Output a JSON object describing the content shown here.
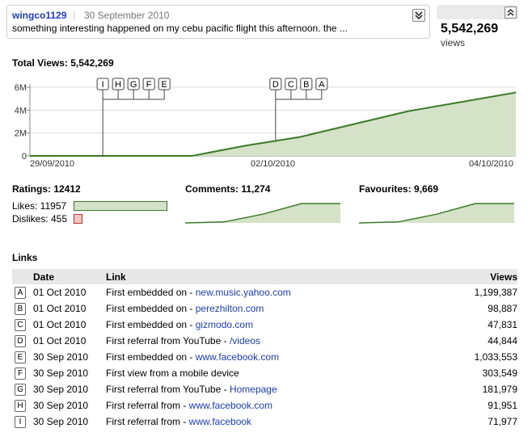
{
  "header": {
    "username": "wingco1129",
    "separator": "|",
    "date": "30 September 2010",
    "description": "something interesting happened on my cebu pacific flight this afternoon. the ...",
    "views_count": "5,542,269",
    "views_label": "views"
  },
  "total": {
    "label": "Total Views: 5,542,269"
  },
  "chart_data": {
    "type": "area",
    "title": "Total Views: 5,542,269",
    "x_tick_labels": [
      "29/09/2010",
      "02/10/2010",
      "04/10/2010"
    ],
    "y_tick_labels": [
      "0",
      "2M",
      "4M",
      "6M"
    ],
    "ylim": [
      0,
      6000000
    ],
    "x": [
      0,
      3,
      4,
      5,
      7,
      9
    ],
    "values": [
      0,
      0,
      900000,
      1650000,
      3900000,
      5542269
    ],
    "colors": {
      "line": "#3b7a2a",
      "fill": "#d4e3c7"
    },
    "markers": [
      {
        "group": [
          "I",
          "H",
          "G",
          "F",
          "E"
        ],
        "anchor_x": 1.35
      },
      {
        "group": [
          "D",
          "C",
          "B",
          "A"
        ],
        "anchor_x": 4.55
      }
    ]
  },
  "stats": {
    "ratings": "Ratings: 12412",
    "likes_label": "Likes: 11957",
    "dislikes_label": "Dislikes: 455",
    "likes": 11957,
    "dislikes": 455,
    "comments": "Comments: 11,274",
    "favourites": "Favourites: 9,669",
    "spark": [
      0,
      0.05,
      0.45,
      1,
      1
    ]
  },
  "links": {
    "title": "Links",
    "columns": {
      "date": "Date",
      "link": "Link",
      "views": "Views"
    },
    "rows": [
      {
        "letter": "A",
        "date": "01 Oct 2010",
        "prefix": "First embedded on - ",
        "url": "new.music.yahoo.com",
        "views": "1,199,387"
      },
      {
        "letter": "B",
        "date": "01 Oct 2010",
        "prefix": "First embedded on - ",
        "url": "perezhilton.com",
        "views": "98,887"
      },
      {
        "letter": "C",
        "date": "01 Oct 2010",
        "prefix": "First embedded on - ",
        "url": "gizmodo.com",
        "views": "47,831"
      },
      {
        "letter": "D",
        "date": "01 Oct 2010",
        "prefix": "First referral from YouTube - ",
        "url": "/videos",
        "views": "44,844"
      },
      {
        "letter": "E",
        "date": "30 Sep 2010",
        "prefix": "First embedded on - ",
        "url": "www.facebook.com",
        "views": "1,033,553"
      },
      {
        "letter": "F",
        "date": "30 Sep 2010",
        "prefix": "First view from a mobile device",
        "url": "",
        "views": "303,549"
      },
      {
        "letter": "G",
        "date": "30 Sep 2010",
        "prefix": "First referral from YouTube - ",
        "url": "Homepage",
        "views": "181,979"
      },
      {
        "letter": "H",
        "date": "30 Sep 2010",
        "prefix": "First referral from - ",
        "url": "www.facebook.com",
        "views": "91,951"
      },
      {
        "letter": "I",
        "date": "30 Sep 2010",
        "prefix": "First referral from - ",
        "url": "www.facebook",
        "views": "71,977"
      }
    ]
  }
}
